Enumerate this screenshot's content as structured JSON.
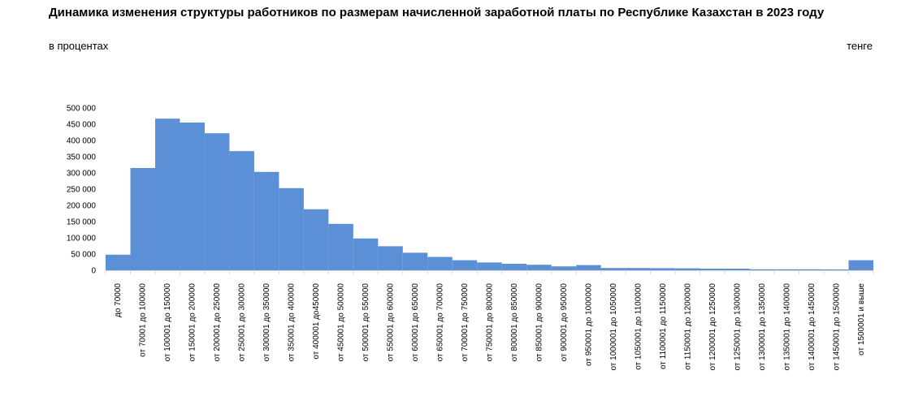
{
  "page": {
    "title": "Динамика изменения структуры работников по размерам начисленной заработной платы по Республике Казахстан в 2023 году",
    "unit_left": "в процентах",
    "unit_right": "тенге"
  },
  "chart_data": {
    "type": "bar",
    "categories": [
      "до 70000",
      "от 70001 до 100000",
      "от 100001 до 150000",
      "от 150001 до 200000",
      "от 200001 до 250000",
      "от 250001 до 300000",
      "от 300001 до 350000",
      "от 350001 до 400000",
      "от 400001 до450000",
      "от 450001 до 500000",
      "от 500001 до 550000",
      "от 550001 до 600000",
      "от 600001 до 650000",
      "от 650001 до 700000",
      "от 700001 до 750000",
      "от 750001 до 800000",
      "от 800001 до 850000",
      "от 850001 до 900000",
      "от 900001 до 950000",
      "от 950001 до 1000000",
      "от 1000001 до 1050000",
      "от 1050001 до 1100000",
      "от 1100001 до 1150000",
      "от 1150001 до 1200000",
      "от 1200001 до 1250000",
      "от 1250001 до 1300000",
      "от 1300001 до 1350000",
      "от 1350001 до 1400000",
      "от 1400001 до 1450000",
      "от 1450001 до 1500000",
      "от 1500001 и выше"
    ],
    "values": [
      48000,
      315000,
      467000,
      455000,
      422000,
      367000,
      303000,
      253000,
      188000,
      143000,
      98000,
      74000,
      54000,
      41000,
      31000,
      24000,
      20000,
      17000,
      12000,
      16000,
      7000,
      7000,
      6500,
      6000,
      5000,
      5000,
      3000,
      3000,
      3000,
      2500,
      31000
    ],
    "yticks": [
      "0",
      "50 000",
      "100 000",
      "150 000",
      "200 000",
      "250 000",
      "300 000",
      "350 000",
      "400 000",
      "450 000",
      "500 000"
    ],
    "ylim": [
      0,
      500000
    ],
    "grid": false,
    "bar_color": "#5B8FD6",
    "axis_color": "#D9D9D9"
  }
}
